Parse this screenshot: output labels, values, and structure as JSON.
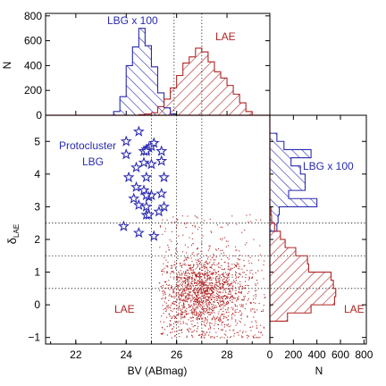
{
  "chart_data": [
    {
      "panel": "top-histogram",
      "type": "bar",
      "xlim": [
        20.8,
        29.7
      ],
      "ylim": [
        0,
        820
      ],
      "ylabel": "N",
      "yticks": [
        "0",
        "200",
        "400",
        "600",
        "800"
      ],
      "series": [
        {
          "name": "LBG x 100",
          "color": "#2a2ab0",
          "bin_edges": [
            23.5,
            23.75,
            24.0,
            24.25,
            24.5,
            24.75,
            25.0,
            25.25,
            25.5,
            25.75,
            26.0
          ],
          "values": [
            30,
            150,
            400,
            550,
            700,
            560,
            390,
            180,
            60,
            10
          ]
        },
        {
          "name": "LAE",
          "color": "#b02424",
          "bin_edges": [
            24.5,
            24.75,
            25.0,
            25.25,
            25.5,
            25.75,
            26.0,
            26.25,
            26.5,
            26.75,
            27.0,
            27.25,
            27.5,
            27.75,
            28.0,
            28.25,
            28.5,
            28.75,
            29.0
          ],
          "values": [
            5,
            10,
            20,
            70,
            130,
            220,
            320,
            420,
            470,
            540,
            510,
            430,
            350,
            300,
            240,
            170,
            100,
            30
          ]
        }
      ],
      "vlines": [
        25.9,
        27.0
      ],
      "annotations": [
        "LBG x 100",
        "LAE"
      ]
    },
    {
      "panel": "main-scatter",
      "type": "scatter",
      "xlabel": "BV (ABmag)",
      "ylabel": "δLAE",
      "xlim": [
        20.8,
        29.7
      ],
      "ylim": [
        -1.2,
        5.8
      ],
      "xticks": [
        "22",
        "24",
        "26",
        "28"
      ],
      "yticks": [
        "−1",
        "0",
        "1",
        "2",
        "3",
        "4",
        "5"
      ],
      "hlines": [
        0.5,
        1.5,
        2.5
      ],
      "vlines": [
        25.0,
        26.0,
        27.0
      ],
      "stars": {
        "label": "Protocluster LBG",
        "color": "#2a2ab0",
        "x": [
          24.5,
          24.0,
          24.9,
          24.8,
          25.0,
          25.1,
          24.7,
          24.8,
          25.4,
          24.0,
          24.7,
          25.0,
          25.4,
          24.4,
          24.8,
          25.5,
          24.1,
          24.4,
          24.7,
          24.9,
          25.0,
          25.4,
          24.8,
          24.3,
          24.5,
          24.8,
          25.5,
          24.8,
          24.9,
          25.3,
          23.9,
          24.5,
          25.1
        ],
        "y": [
          5.3,
          5.0,
          4.8,
          4.75,
          4.85,
          4.95,
          4.7,
          4.7,
          4.7,
          4.6,
          4.35,
          4.3,
          4.4,
          4.2,
          3.9,
          3.9,
          3.9,
          3.6,
          3.5,
          3.3,
          3.35,
          3.4,
          3.35,
          3.25,
          3.05,
          3.0,
          3.0,
          2.75,
          2.75,
          2.85,
          2.4,
          2.2,
          2.1
        ]
      },
      "points": {
        "name": "LAE",
        "color": "#b02424",
        "density_center": [
          27.0,
          0.4
        ],
        "x_range": [
          25.3,
          29.5
        ],
        "y_range": [
          -1.0,
          2.8
        ]
      },
      "annotations": [
        "Protocluster",
        "LBG",
        "LAE"
      ]
    },
    {
      "panel": "right-histogram",
      "type": "bar",
      "orientation": "horizontal",
      "xlabel": "N",
      "xlim": [
        0,
        820
      ],
      "ylim": [
        -1.2,
        5.8
      ],
      "xticks": [
        "0",
        "200",
        "400",
        "600",
        "800"
      ],
      "series": [
        {
          "name": "LBG x 100",
          "color": "#2a2ab0",
          "bin_edges": [
            2.25,
            2.5,
            2.75,
            3.0,
            3.25,
            3.5,
            3.75,
            4.0,
            4.25,
            4.5,
            4.75,
            5.0,
            5.25
          ],
          "values": [
            60,
            70,
            80,
            400,
            160,
            300,
            300,
            260,
            180,
            350,
            120,
            60
          ]
        },
        {
          "name": "LAE",
          "color": "#b02424",
          "bin_edges": [
            -0.5,
            -0.25,
            0.0,
            0.25,
            0.5,
            0.75,
            1.0,
            1.25,
            1.5,
            1.75,
            2.0,
            2.25,
            2.5,
            2.75,
            3.0
          ],
          "values": [
            150,
            350,
            550,
            560,
            540,
            520,
            330,
            320,
            220,
            130,
            90,
            40,
            15,
            10
          ]
        }
      ],
      "hlines": [
        0.5,
        1.5,
        2.5
      ],
      "annotations": [
        "LBG x 100",
        "LAE"
      ]
    }
  ],
  "labels": {
    "top_lbg": "LBG x 100",
    "top_lae": "LAE",
    "proto_line1": "Protocluster",
    "proto_line2": "LBG",
    "main_lae": "LAE",
    "right_lbg": "LBG x 100",
    "right_lae": "LAE"
  }
}
